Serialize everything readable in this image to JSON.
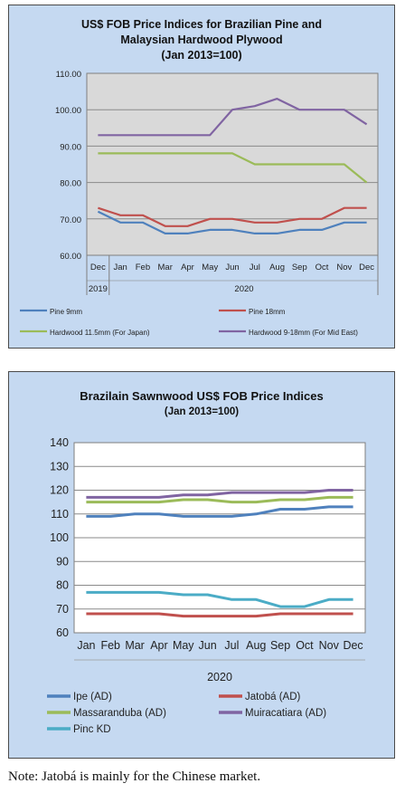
{
  "chart_data": [
    {
      "type": "line",
      "title_lines": [
        "US$ FOB Price Indices for Brazilian Pine and",
        "Malaysian Hardwood Plywood",
        "(Jan 2013=100)"
      ],
      "categories": [
        "Dec",
        "Jan",
        "Feb",
        "Mar",
        "Apr",
        "May",
        "Jun",
        "Jul",
        "Aug",
        "Sep",
        "Oct",
        "Nov",
        "Dec"
      ],
      "year_labels": [
        "2019",
        "2020"
      ],
      "ylim": [
        60,
        110
      ],
      "yticks": [
        "60.00",
        "70.00",
        "80.00",
        "90.00",
        "100.00",
        "110.00"
      ],
      "legend_position": "bottom",
      "series": [
        {
          "name": "Pine 9mm",
          "color": "#4f81bd",
          "values": [
            72,
            69,
            69,
            66,
            66,
            67,
            67,
            66,
            66,
            67,
            67,
            69,
            69
          ]
        },
        {
          "name": "Pine 18mm",
          "color": "#c0504d",
          "values": [
            73,
            71,
            71,
            68,
            68,
            70,
            70,
            69,
            69,
            70,
            70,
            73,
            73
          ]
        },
        {
          "name": "Hardwood 11.5mm (For Japan)",
          "color": "#9bbb59",
          "values": [
            88,
            88,
            88,
            88,
            88,
            88,
            88,
            85,
            85,
            85,
            85,
            85,
            80
          ]
        },
        {
          "name": "Hardwood 9-18mm (For Mid East)",
          "color": "#8064a2",
          "values": [
            93,
            93,
            93,
            93,
            93,
            93,
            100,
            101,
            103,
            100,
            100,
            100,
            96
          ]
        }
      ]
    },
    {
      "type": "line",
      "title_lines": [
        "Brazilain Sawnwood US$ FOB Price Indices",
        "(Jan 2013=100)"
      ],
      "categories": [
        "Jan",
        "Feb",
        "Mar",
        "Apr",
        "May",
        "Jun",
        "Jul",
        "Aug",
        "Sep",
        "Oct",
        "Nov",
        "Dec"
      ],
      "xlabel": "2020",
      "ylim": [
        60,
        140
      ],
      "yticks": [
        "60",
        "70",
        "80",
        "90",
        "100",
        "110",
        "120",
        "130",
        "140"
      ],
      "legend_position": "bottom",
      "series": [
        {
          "name": "Ipe (AD)",
          "color": "#4f81bd",
          "values": [
            109,
            109,
            110,
            110,
            109,
            109,
            109,
            110,
            112,
            112,
            113,
            113
          ]
        },
        {
          "name": "Jatobá (AD)",
          "color": "#c0504d",
          "values": [
            68,
            68,
            68,
            68,
            67,
            67,
            67,
            67,
            68,
            68,
            68,
            68
          ]
        },
        {
          "name": "Massaranduba (AD)",
          "color": "#9bbb59",
          "values": [
            115,
            115,
            115,
            115,
            116,
            116,
            115,
            115,
            116,
            116,
            117,
            117
          ]
        },
        {
          "name": "Muiracatiara (AD)",
          "color": "#8064a2",
          "values": [
            117,
            117,
            117,
            117,
            118,
            118,
            119,
            119,
            119,
            119,
            120,
            120
          ]
        },
        {
          "name": "Pinc KD",
          "color": "#4bacc6",
          "values": [
            77,
            77,
            77,
            77,
            76,
            76,
            74,
            74,
            71,
            71,
            74,
            74
          ]
        }
      ]
    }
  ],
  "note": "Note: Jatobá is mainly for the Chinese market."
}
